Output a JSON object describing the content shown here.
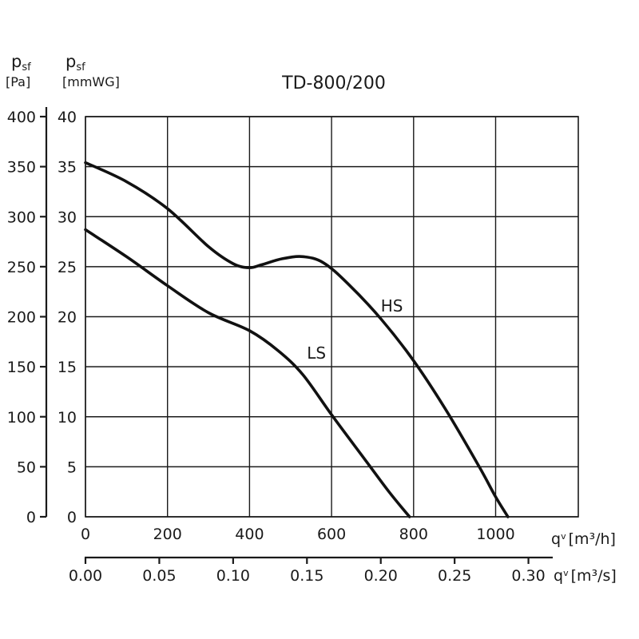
{
  "chart_data": {
    "type": "line",
    "title": "TD-800/200",
    "y_left": {
      "symbol": "p",
      "subscript": "sf",
      "unit": "[Pa]",
      "ticks": [
        0,
        50,
        100,
        150,
        200,
        250,
        300,
        350,
        400
      ],
      "ylim": [
        0,
        400
      ]
    },
    "y_inner": {
      "symbol": "p",
      "subscript": "sf",
      "unit": "[mmWG]",
      "ticks": [
        0,
        5,
        10,
        15,
        20,
        25,
        30,
        35,
        40
      ],
      "ylim": [
        0,
        40
      ]
    },
    "x_top": {
      "symbol": "q",
      "subscript": "v",
      "unit": "[m³/h]",
      "ticks": [
        0,
        200,
        400,
        600,
        800,
        1000
      ],
      "xlim": [
        0,
        1200
      ]
    },
    "x_bottom": {
      "symbol": "q",
      "subscript": "v",
      "unit": "[m³/s]",
      "ticks": [
        "0.00",
        "0.05",
        "0.10",
        "0.15",
        "0.20",
        "0.25",
        "0.30"
      ],
      "xlim": [
        0,
        0.3333
      ]
    },
    "grid": true,
    "series": [
      {
        "name": "HS",
        "x": [
          0,
          100,
          200,
          300,
          360,
          400,
          430,
          480,
          530,
          580,
          640,
          720,
          800,
          880,
          960,
          1000,
          1030
        ],
        "y": [
          35.4,
          33.5,
          30.8,
          27.0,
          25.3,
          24.9,
          25.2,
          25.8,
          26.0,
          25.4,
          23.3,
          19.8,
          15.6,
          10.6,
          5.0,
          2.0,
          0
        ]
      },
      {
        "name": "LS",
        "x": [
          0,
          100,
          200,
          300,
          400,
          470,
          530,
          600,
          680,
          740,
          790
        ],
        "y": [
          28.7,
          26.0,
          23.1,
          20.4,
          18.6,
          16.6,
          14.2,
          10.2,
          5.8,
          2.5,
          0
        ]
      }
    ]
  }
}
